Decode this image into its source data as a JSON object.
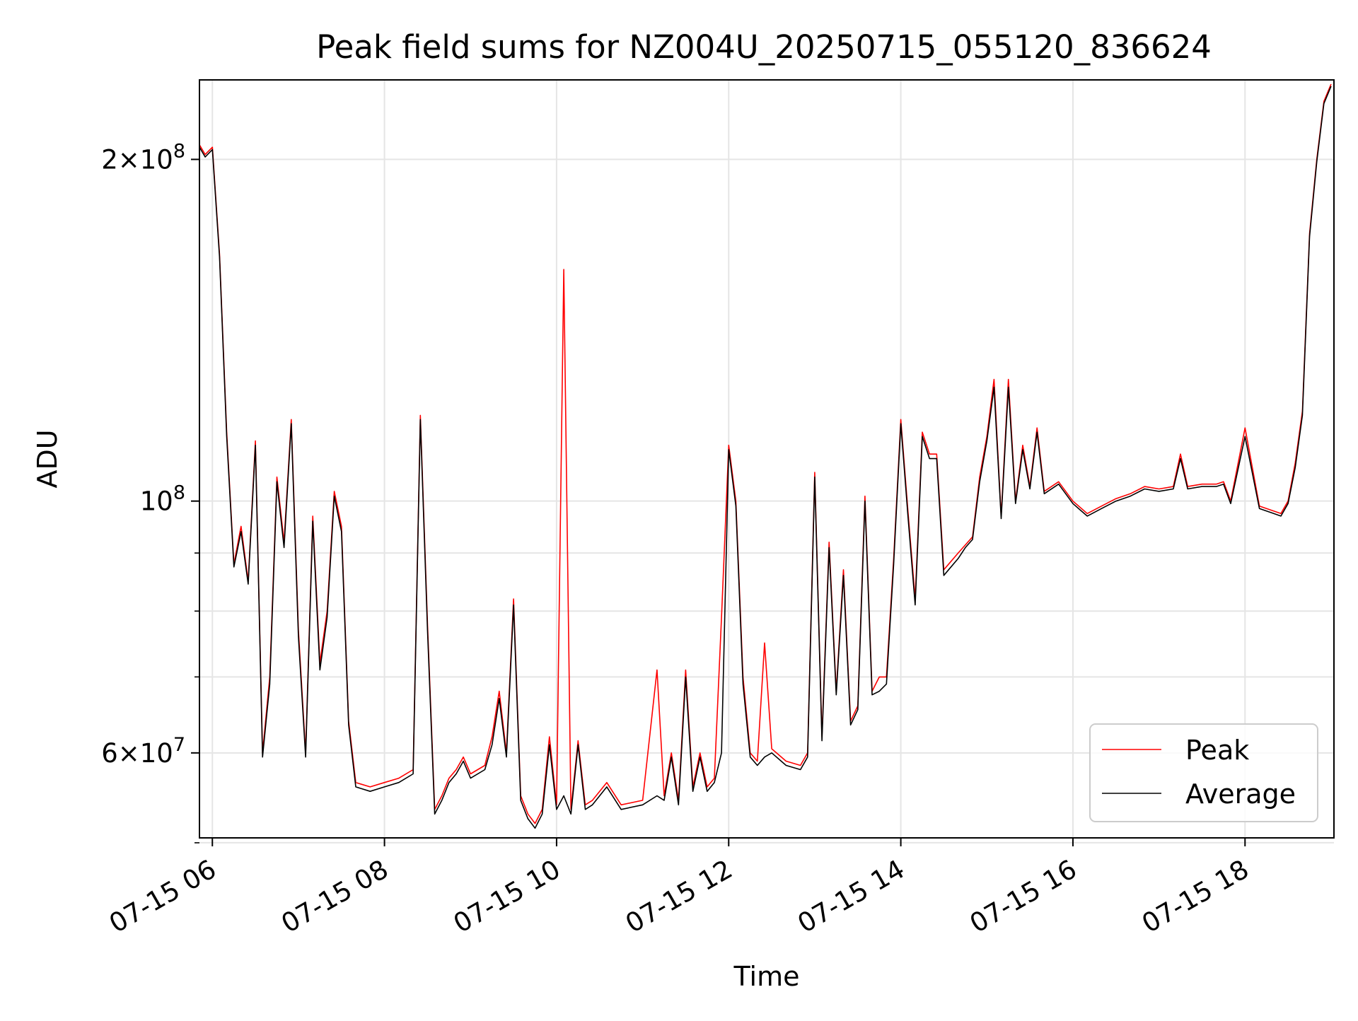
{
  "chart_data": {
    "type": "line",
    "title": "Peak field sums for NZ004U_20250715_055120_836624",
    "xlabel": "Time",
    "ylabel": "ADU",
    "y_scale": "log",
    "grid": true,
    "legend_position": "lower-right",
    "xlim": [
      "2025-07-15 05:51",
      "2025-07-15 19:02"
    ],
    "ylim": [
      50500000,
      235000000
    ],
    "x_ticks": [
      {
        "value": "2025-07-15 06:00",
        "label": "07-15 06"
      },
      {
        "value": "2025-07-15 08:00",
        "label": "07-15 08"
      },
      {
        "value": "2025-07-15 10:00",
        "label": "07-15 10"
      },
      {
        "value": "2025-07-15 12:00",
        "label": "07-15 12"
      },
      {
        "value": "2025-07-15 14:00",
        "label": "07-15 14"
      },
      {
        "value": "2025-07-15 16:00",
        "label": "07-15 16"
      },
      {
        "value": "2025-07-15 18:00",
        "label": "07-15 18"
      }
    ],
    "y_major_ticks": [
      {
        "value": 60000000,
        "base": "6",
        "exp": "7"
      },
      {
        "value": 100000000,
        "base": "",
        "exp": "8"
      },
      {
        "value": 200000000,
        "base": "2",
        "exp": "8"
      }
    ],
    "y_minor_ticks": [
      50000000,
      70000000,
      80000000,
      90000000
    ],
    "series": [
      {
        "name": "Peak",
        "color": "#ff0000",
        "x": [
          "2025-07-15 05:51",
          "2025-07-15 05:55",
          "2025-07-15 06:00",
          "2025-07-15 06:05",
          "2025-07-15 06:10",
          "2025-07-15 06:15",
          "2025-07-15 06:20",
          "2025-07-15 06:25",
          "2025-07-15 06:30",
          "2025-07-15 06:35",
          "2025-07-15 06:40",
          "2025-07-15 06:45",
          "2025-07-15 06:50",
          "2025-07-15 06:55",
          "2025-07-15 07:00",
          "2025-07-15 07:05",
          "2025-07-15 07:10",
          "2025-07-15 07:15",
          "2025-07-15 07:20",
          "2025-07-15 07:25",
          "2025-07-15 07:30",
          "2025-07-15 07:35",
          "2025-07-15 07:40",
          "2025-07-15 07:50",
          "2025-07-15 08:00",
          "2025-07-15 08:10",
          "2025-07-15 08:20",
          "2025-07-15 08:25",
          "2025-07-15 08:30",
          "2025-07-15 08:35",
          "2025-07-15 08:40",
          "2025-07-15 08:45",
          "2025-07-15 08:50",
          "2025-07-15 08:55",
          "2025-07-15 09:00",
          "2025-07-15 09:10",
          "2025-07-15 09:15",
          "2025-07-15 09:20",
          "2025-07-15 09:25",
          "2025-07-15 09:30",
          "2025-07-15 09:35",
          "2025-07-15 09:40",
          "2025-07-15 09:45",
          "2025-07-15 09:50",
          "2025-07-15 09:55",
          "2025-07-15 10:00",
          "2025-07-15 10:05",
          "2025-07-15 10:10",
          "2025-07-15 10:15",
          "2025-07-15 10:20",
          "2025-07-15 10:25",
          "2025-07-15 10:35",
          "2025-07-15 10:45",
          "2025-07-15 11:00",
          "2025-07-15 11:10",
          "2025-07-15 11:15",
          "2025-07-15 11:20",
          "2025-07-15 11:25",
          "2025-07-15 11:30",
          "2025-07-15 11:35",
          "2025-07-15 11:40",
          "2025-07-15 11:45",
          "2025-07-15 11:50",
          "2025-07-15 11:55",
          "2025-07-15 12:00",
          "2025-07-15 12:05",
          "2025-07-15 12:10",
          "2025-07-15 12:15",
          "2025-07-15 12:20",
          "2025-07-15 12:25",
          "2025-07-15 12:30",
          "2025-07-15 12:40",
          "2025-07-15 12:50",
          "2025-07-15 12:55",
          "2025-07-15 13:00",
          "2025-07-15 13:05",
          "2025-07-15 13:10",
          "2025-07-15 13:15",
          "2025-07-15 13:20",
          "2025-07-15 13:25",
          "2025-07-15 13:30",
          "2025-07-15 13:35",
          "2025-07-15 13:40",
          "2025-07-15 13:45",
          "2025-07-15 13:50",
          "2025-07-15 13:55",
          "2025-07-15 14:00",
          "2025-07-15 14:05",
          "2025-07-15 14:10",
          "2025-07-15 14:15",
          "2025-07-15 14:20",
          "2025-07-15 14:25",
          "2025-07-15 14:30",
          "2025-07-15 14:40",
          "2025-07-15 14:45",
          "2025-07-15 14:50",
          "2025-07-15 14:55",
          "2025-07-15 15:00",
          "2025-07-15 15:05",
          "2025-07-15 15:10",
          "2025-07-15 15:15",
          "2025-07-15 15:20",
          "2025-07-15 15:25",
          "2025-07-15 15:30",
          "2025-07-15 15:35",
          "2025-07-15 15:40",
          "2025-07-15 15:50",
          "2025-07-15 16:00",
          "2025-07-15 16:10",
          "2025-07-15 16:20",
          "2025-07-15 16:30",
          "2025-07-15 16:40",
          "2025-07-15 16:50",
          "2025-07-15 17:00",
          "2025-07-15 17:10",
          "2025-07-15 17:15",
          "2025-07-15 17:20",
          "2025-07-15 17:30",
          "2025-07-15 17:40",
          "2025-07-15 17:45",
          "2025-07-15 17:50",
          "2025-07-15 18:00",
          "2025-07-15 18:10",
          "2025-07-15 18:15",
          "2025-07-15 18:20",
          "2025-07-15 18:25",
          "2025-07-15 18:30",
          "2025-07-15 18:35",
          "2025-07-15 18:40",
          "2025-07-15 18:45",
          "2025-07-15 18:50",
          "2025-07-15 18:55",
          "2025-07-15 19:00"
        ],
        "y": [
          206000000,
          202000000,
          205000000,
          165000000,
          115000000,
          88000000,
          95000000,
          85000000,
          113000000,
          60000000,
          70000000,
          105000000,
          92000000,
          118000000,
          77000000,
          60000000,
          97000000,
          72000000,
          80000000,
          102000000,
          95000000,
          64000000,
          56500000,
          56000000,
          56500000,
          57000000,
          58000000,
          119000000,
          78000000,
          53500000,
          55000000,
          57000000,
          58000000,
          59500000,
          57500000,
          58500000,
          62000000,
          68000000,
          60000000,
          82000000,
          55000000,
          53000000,
          52000000,
          53500000,
          62000000,
          54000000,
          160000000,
          53500000,
          61500000,
          54000000,
          54500000,
          56500000,
          54000000,
          54500000,
          71000000,
          55000000,
          60000000,
          54500000,
          71000000,
          56000000,
          60000000,
          56000000,
          57000000,
          79000000,
          112000000,
          100000000,
          70000000,
          60000000,
          59000000,
          75000000,
          60500000,
          59000000,
          58500000,
          60000000,
          106000000,
          62000000,
          92000000,
          68000000,
          87000000,
          64000000,
          66000000,
          101000000,
          68000000,
          70000000,
          70000000,
          89000000,
          118000000,
          98000000,
          82000000,
          115000000,
          110000000,
          110000000,
          87000000,
          90000000,
          91500000,
          93000000,
          105000000,
          114000000,
          128000000,
          97000000,
          128000000,
          100000000,
          112000000,
          103000000,
          116000000,
          102000000,
          104000000,
          100000000,
          97500000,
          99000000,
          100500000,
          101500000,
          103000000,
          102500000,
          103000000,
          110000000,
          103000000,
          103500000,
          103500000,
          104000000,
          100000000,
          116000000,
          99000000,
          98500000,
          98000000,
          97500000,
          100000000,
          108000000,
          120000000,
          172000000,
          200000000,
          225000000,
          233000000
        ]
      },
      {
        "name": "Average",
        "color": "#000000",
        "x": [
          "2025-07-15 05:51",
          "2025-07-15 05:55",
          "2025-07-15 06:00",
          "2025-07-15 06:05",
          "2025-07-15 06:10",
          "2025-07-15 06:15",
          "2025-07-15 06:20",
          "2025-07-15 06:25",
          "2025-07-15 06:30",
          "2025-07-15 06:35",
          "2025-07-15 06:40",
          "2025-07-15 06:45",
          "2025-07-15 06:50",
          "2025-07-15 06:55",
          "2025-07-15 07:00",
          "2025-07-15 07:05",
          "2025-07-15 07:10",
          "2025-07-15 07:15",
          "2025-07-15 07:20",
          "2025-07-15 07:25",
          "2025-07-15 07:30",
          "2025-07-15 07:35",
          "2025-07-15 07:40",
          "2025-07-15 07:50",
          "2025-07-15 08:00",
          "2025-07-15 08:10",
          "2025-07-15 08:20",
          "2025-07-15 08:25",
          "2025-07-15 08:30",
          "2025-07-15 08:35",
          "2025-07-15 08:40",
          "2025-07-15 08:45",
          "2025-07-15 08:50",
          "2025-07-15 08:55",
          "2025-07-15 09:00",
          "2025-07-15 09:10",
          "2025-07-15 09:15",
          "2025-07-15 09:20",
          "2025-07-15 09:25",
          "2025-07-15 09:30",
          "2025-07-15 09:35",
          "2025-07-15 09:40",
          "2025-07-15 09:45",
          "2025-07-15 09:50",
          "2025-07-15 09:55",
          "2025-07-15 10:00",
          "2025-07-15 10:05",
          "2025-07-15 10:10",
          "2025-07-15 10:15",
          "2025-07-15 10:20",
          "2025-07-15 10:25",
          "2025-07-15 10:35",
          "2025-07-15 10:45",
          "2025-07-15 11:00",
          "2025-07-15 11:10",
          "2025-07-15 11:15",
          "2025-07-15 11:20",
          "2025-07-15 11:25",
          "2025-07-15 11:30",
          "2025-07-15 11:35",
          "2025-07-15 11:40",
          "2025-07-15 11:45",
          "2025-07-15 11:50",
          "2025-07-15 11:55",
          "2025-07-15 12:00",
          "2025-07-15 12:05",
          "2025-07-15 12:10",
          "2025-07-15 12:15",
          "2025-07-15 12:20",
          "2025-07-15 12:25",
          "2025-07-15 12:30",
          "2025-07-15 12:40",
          "2025-07-15 12:50",
          "2025-07-15 12:55",
          "2025-07-15 13:00",
          "2025-07-15 13:05",
          "2025-07-15 13:10",
          "2025-07-15 13:15",
          "2025-07-15 13:20",
          "2025-07-15 13:25",
          "2025-07-15 13:30",
          "2025-07-15 13:35",
          "2025-07-15 13:40",
          "2025-07-15 13:45",
          "2025-07-15 13:50",
          "2025-07-15 13:55",
          "2025-07-15 14:00",
          "2025-07-15 14:05",
          "2025-07-15 14:10",
          "2025-07-15 14:15",
          "2025-07-15 14:20",
          "2025-07-15 14:25",
          "2025-07-15 14:30",
          "2025-07-15 14:40",
          "2025-07-15 14:45",
          "2025-07-15 14:50",
          "2025-07-15 14:55",
          "2025-07-15 15:00",
          "2025-07-15 15:05",
          "2025-07-15 15:10",
          "2025-07-15 15:15",
          "2025-07-15 15:20",
          "2025-07-15 15:25",
          "2025-07-15 15:30",
          "2025-07-15 15:35",
          "2025-07-15 15:40",
          "2025-07-15 15:50",
          "2025-07-15 16:00",
          "2025-07-15 16:10",
          "2025-07-15 16:20",
          "2025-07-15 16:30",
          "2025-07-15 16:40",
          "2025-07-15 16:50",
          "2025-07-15 17:00",
          "2025-07-15 17:10",
          "2025-07-15 17:15",
          "2025-07-15 17:20",
          "2025-07-15 17:30",
          "2025-07-15 17:40",
          "2025-07-15 17:45",
          "2025-07-15 17:50",
          "2025-07-15 18:00",
          "2025-07-15 18:10",
          "2025-07-15 18:15",
          "2025-07-15 18:20",
          "2025-07-15 18:25",
          "2025-07-15 18:30",
          "2025-07-15 18:35",
          "2025-07-15 18:40",
          "2025-07-15 18:45",
          "2025-07-15 18:50",
          "2025-07-15 18:55",
          "2025-07-15 19:00"
        ],
        "y": [
          205000000,
          201000000,
          204000000,
          164000000,
          114000000,
          87500000,
          94000000,
          84500000,
          112000000,
          59500000,
          69000000,
          104000000,
          91000000,
          117000000,
          76000000,
          59500000,
          96000000,
          71000000,
          79000000,
          101000000,
          94000000,
          63500000,
          56000000,
          55500000,
          56000000,
          56500000,
          57500000,
          118000000,
          77000000,
          53000000,
          54500000,
          56500000,
          57500000,
          59000000,
          57000000,
          58000000,
          61000000,
          67000000,
          59500000,
          81000000,
          54500000,
          52500000,
          51500000,
          53000000,
          61000000,
          53500000,
          55000000,
          53000000,
          61000000,
          53500000,
          54000000,
          56000000,
          53500000,
          54000000,
          55000000,
          54500000,
          59500000,
          54000000,
          70000000,
          55500000,
          59500000,
          55500000,
          56500000,
          60000000,
          111000000,
          99000000,
          69000000,
          59500000,
          58500000,
          59500000,
          60000000,
          58500000,
          58000000,
          59500000,
          105000000,
          61500000,
          91000000,
          67500000,
          86000000,
          63500000,
          65500000,
          100000000,
          67500000,
          68000000,
          69000000,
          88000000,
          117000000,
          97000000,
          81000000,
          114000000,
          109000000,
          109000000,
          86000000,
          89000000,
          91000000,
          92500000,
          104000000,
          113000000,
          126000000,
          96500000,
          126000000,
          99500000,
          111000000,
          102500000,
          115000000,
          101500000,
          103500000,
          99500000,
          97000000,
          98500000,
          100000000,
          101000000,
          102500000,
          102000000,
          102500000,
          109000000,
          102500000,
          103000000,
          103000000,
          103500000,
          99500000,
          114000000,
          98500000,
          98000000,
          97500000,
          97000000,
          99500000,
          107000000,
          119000000,
          171000000,
          199000000,
          224000000,
          232000000
        ]
      }
    ]
  }
}
